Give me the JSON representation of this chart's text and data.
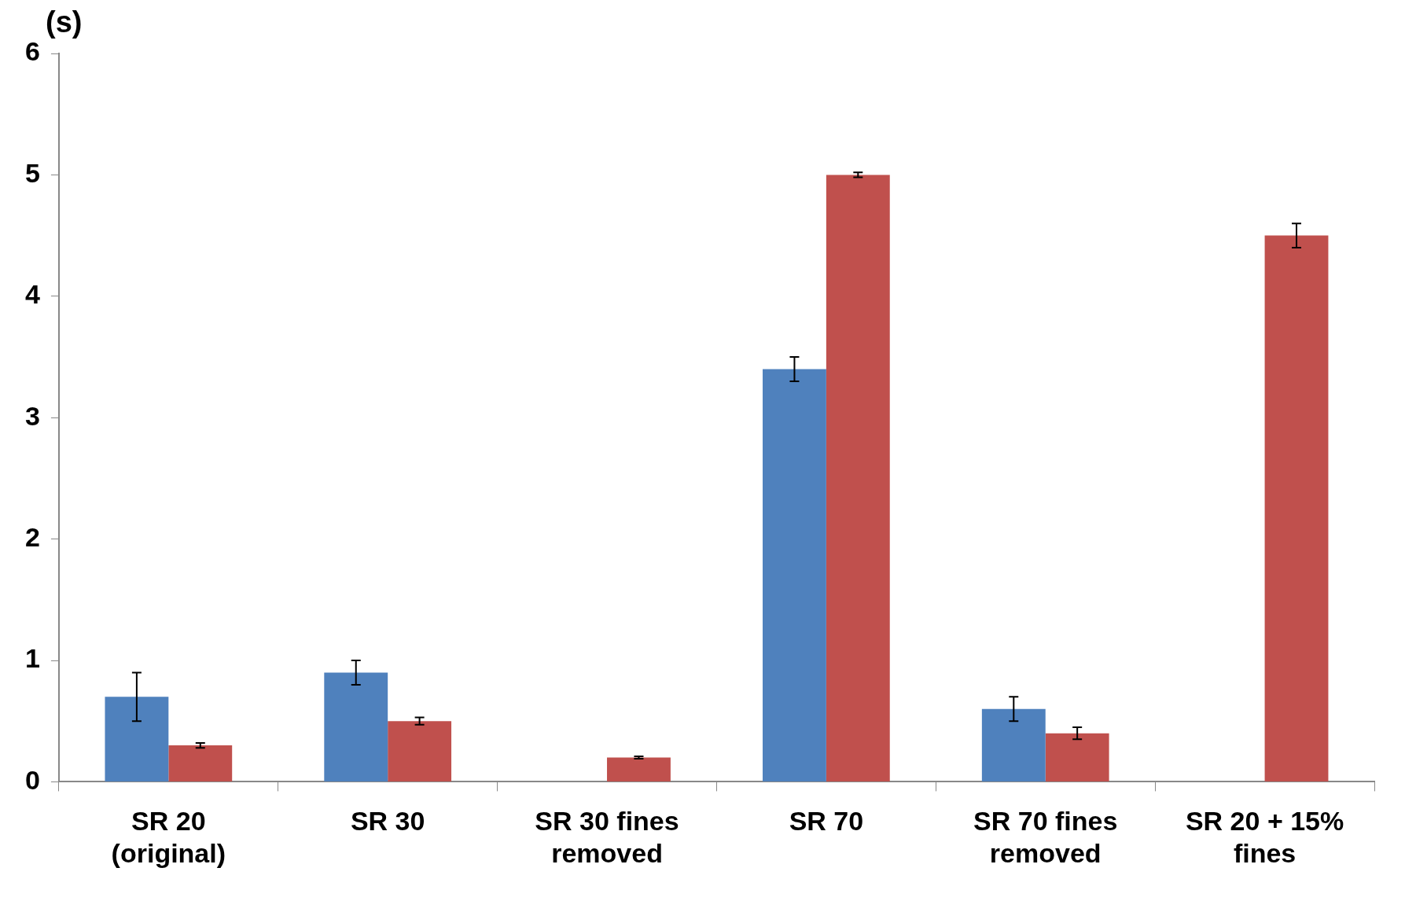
{
  "chart_data": {
    "type": "bar",
    "ylabel": "(s)",
    "categories": [
      "SR 20\n(original)",
      "SR 30",
      "SR 30 fines\nremoved",
      "SR 70",
      "SR 70 fines\nremoved",
      "SR 20 + 15%\nfines"
    ],
    "series": [
      {
        "color": "#4f81bd",
        "values": [
          0.7,
          0.9,
          null,
          3.4,
          0.6,
          null
        ],
        "errors": [
          0.2,
          0.1,
          null,
          0.1,
          0.1,
          null
        ]
      },
      {
        "color": "#c0504d",
        "values": [
          0.3,
          0.5,
          0.2,
          5.0,
          0.4,
          4.5
        ],
        "errors": [
          0.02,
          0.03,
          0.01,
          0.02,
          0.05,
          0.1
        ]
      }
    ],
    "ylim": [
      0,
      6
    ],
    "yticks": [
      0,
      1,
      2,
      3,
      4,
      5,
      6
    ],
    "grid": false,
    "legend": false
  }
}
